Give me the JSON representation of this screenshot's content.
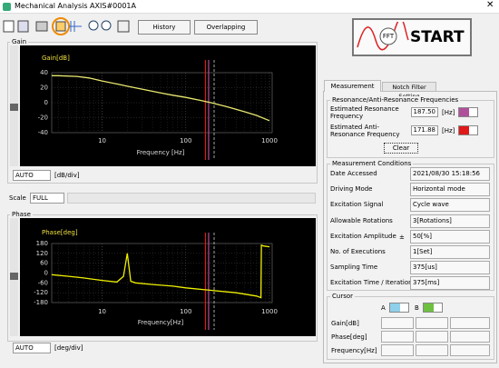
{
  "window": {
    "title": "Mechanical Analysis AXIS#0001A"
  },
  "toolbar": {
    "history": "History",
    "overlapping": "Overlapping",
    "start": "START",
    "start_icon_text": "FFT"
  },
  "gain_panel": {
    "group": "Gain",
    "unit_select": "AUTO",
    "unit": "[dB/div]",
    "chart_data": {
      "type": "line",
      "ylabel": "Gain[dB]",
      "xlabel": "Frequency [Hz]",
      "xscale": "log",
      "x": [
        2.5,
        3,
        5,
        7,
        10,
        15,
        20,
        30,
        50,
        70,
        100,
        150,
        200,
        300,
        500,
        700,
        1000
      ],
      "series": [
        {
          "name": "Gain",
          "color": "#e8e870",
          "values": [
            36,
            36,
            35,
            33,
            29,
            25,
            22,
            18,
            13,
            10,
            7,
            3,
            0,
            -5,
            -12,
            -17,
            -24
          ]
        }
      ],
      "xlim": [
        2.5,
        1000
      ],
      "xticks": [
        10,
        100,
        1000
      ],
      "ylim": [
        -40,
        40
      ],
      "yticks": [
        40,
        20,
        0,
        -20,
        -40
      ],
      "grid": true
    }
  },
  "scale": {
    "label": "Scale",
    "value": "FULL"
  },
  "phase_panel": {
    "group": "Phase",
    "unit_select": "AUTO",
    "unit": "[deg/div]",
    "chart_data": {
      "type": "line",
      "ylabel": "Phase[deg]",
      "xlabel": "Frequency[Hz]",
      "xscale": "log",
      "x": [
        2.5,
        4,
        6,
        10,
        15,
        18,
        20,
        22,
        25,
        40,
        70,
        100,
        200,
        400,
        700,
        790,
        800,
        850,
        1000
      ],
      "series": [
        {
          "name": "Phase",
          "color": "#f0f000",
          "values": [
            -10,
            -20,
            -30,
            -45,
            -55,
            -20,
            120,
            -50,
            -60,
            -70,
            -80,
            -90,
            -105,
            -120,
            -140,
            -150,
            170,
            165,
            160
          ]
        }
      ],
      "xlim": [
        2.5,
        1000
      ],
      "xticks": [
        10,
        100,
        1000
      ],
      "ylim": [
        -180,
        180
      ],
      "yticks": [
        180,
        120,
        60,
        0,
        -60,
        -120,
        -180
      ],
      "grid": true
    }
  },
  "tabs": [
    "Measurement",
    "Notch Filter Setting"
  ],
  "resonance": {
    "group": "Resonance/Anti-Resonance Frequencies",
    "clear": "Clear",
    "rows": [
      {
        "label": "Estimated Resonance Frequency",
        "value": "187.50",
        "unit": "[Hz]",
        "color": "#b0509a"
      },
      {
        "label": "Estimated Anti-Resonance Frequency",
        "value": "171.88",
        "unit": "[Hz]",
        "color": "#e01818"
      }
    ]
  },
  "conditions": {
    "group": "Measurement Conditions",
    "rows": [
      {
        "label": "Date Accessed",
        "value": "2021/08/30 15:18:56"
      },
      {
        "label": "Driving Mode",
        "value": "Horizontal mode"
      },
      {
        "label": "Excitation Signal",
        "value": "Cycle wave"
      },
      {
        "label": "Allowable Rotations",
        "value": "3[Rotations]"
      },
      {
        "label": "Excitation Amplitude",
        "sign": "±",
        "value": "50[%]"
      },
      {
        "label": "No. of Executions",
        "value": "1[Set]"
      },
      {
        "label": "Sampling Time",
        "value": "375[us]"
      },
      {
        "label": "Excitation Time / Iteration",
        "value": "375[ms]"
      }
    ]
  },
  "cursor": {
    "group": "Cursor",
    "a": "A",
    "b": "B",
    "a_color": "#8fd0ea",
    "b_color": "#6ec040",
    "rows": [
      "Gain[dB]",
      "Phase[deg]",
      "Frequency[Hz]"
    ]
  }
}
